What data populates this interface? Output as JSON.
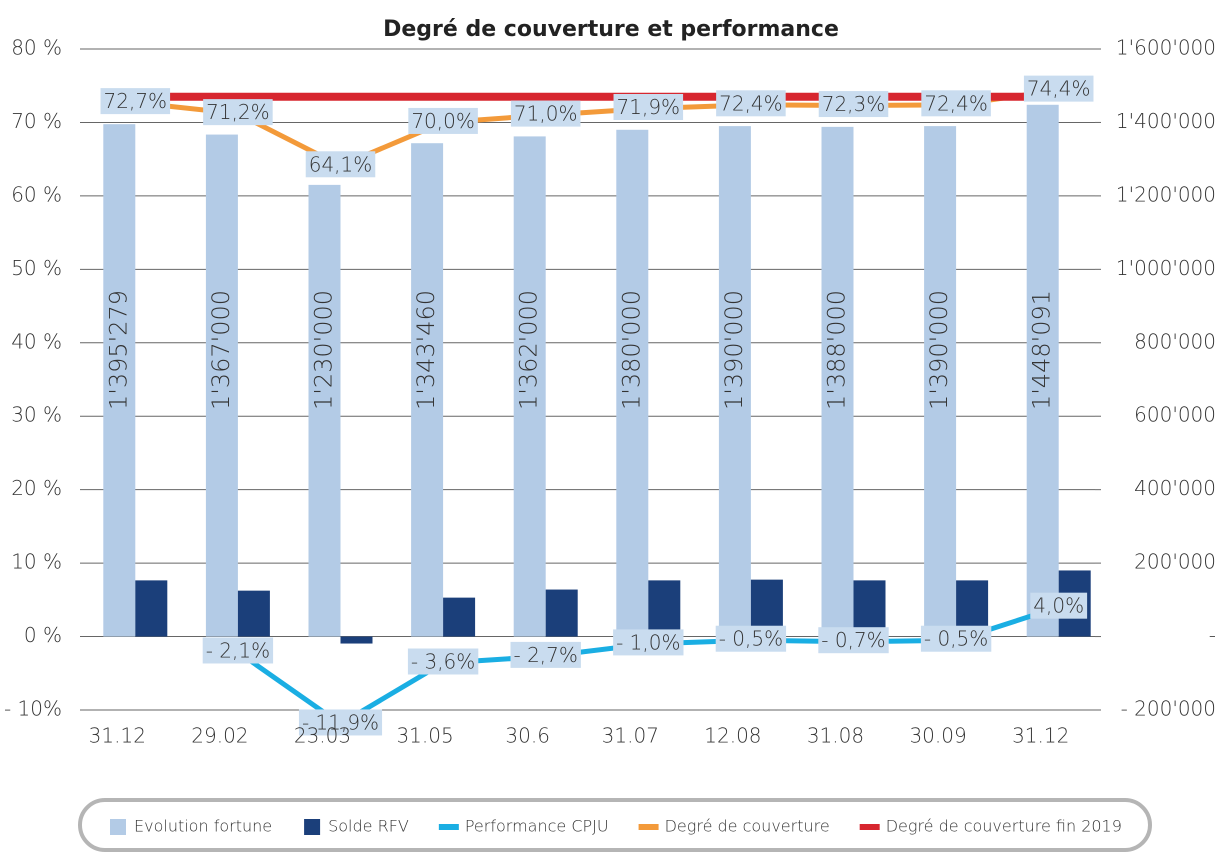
{
  "chart_data": {
    "type": "combo",
    "title": "Degré de couverture et performance",
    "categories": [
      "31.12",
      "29.02",
      "23.03",
      "31.05",
      "30.6",
      "31.07",
      "12.08",
      "31.08",
      "30.09",
      "31.12"
    ],
    "ylim": [
      -10,
      80
    ],
    "yticks": [
      {
        "value": -10,
        "label": "- 10%"
      },
      {
        "value": 0,
        "label": "0 %"
      },
      {
        "value": 10,
        "label": "10 %"
      },
      {
        "value": 20,
        "label": "20 %"
      },
      {
        "value": 30,
        "label": "30 %"
      },
      {
        "value": 40,
        "label": "40 %"
      },
      {
        "value": 50,
        "label": "50 %"
      },
      {
        "value": 60,
        "label": "60 %"
      },
      {
        "value": 70,
        "label": "70 %"
      },
      {
        "value": 80,
        "label": "80 %"
      }
    ],
    "y2lim": [
      -200000,
      1600000
    ],
    "y2ticks": [
      {
        "value": -200000,
        "label": "- 200'000"
      },
      {
        "value": 0,
        "label": "-"
      },
      {
        "value": 200000,
        "label": "200'000"
      },
      {
        "value": 400000,
        "label": "400'000"
      },
      {
        "value": 600000,
        "label": "600'000"
      },
      {
        "value": 800000,
        "label": "800'000"
      },
      {
        "value": 1000000,
        "label": "1'000'000"
      },
      {
        "value": 1200000,
        "label": "1'200'000"
      },
      {
        "value": 1400000,
        "label": "1'400'000"
      },
      {
        "value": 1600000,
        "label": "1'600'000"
      }
    ],
    "grid": true,
    "legend": "bottom",
    "series": [
      {
        "name": "Evolution fortune",
        "type": "bar",
        "axis": "y2",
        "color": "#b3cbe6",
        "values": [
          1395279,
          1367000,
          1230000,
          1343460,
          1362000,
          1380000,
          1390000,
          1388000,
          1390000,
          1448091
        ],
        "value_labels": [
          "1'395'279",
          "1'367'000",
          "1'230'000",
          "1'343'460",
          "1'362'000",
          "1'380'000",
          "1'390'000",
          "1'388'000",
          "1'390'000",
          "1'448'091"
        ]
      },
      {
        "name": "Solde RFV",
        "type": "bar",
        "axis": "y2",
        "color": "#1b3f7a",
        "values": [
          153000,
          125000,
          -19000,
          106000,
          128000,
          153000,
          155000,
          153000,
          153000,
          180000
        ]
      },
      {
        "name": "Performance CPJU",
        "type": "line",
        "color": "#1aaee3",
        "values": [
          null,
          -2.1,
          -11.9,
          -3.6,
          -2.7,
          -1.0,
          -0.5,
          -0.7,
          -0.5,
          4.0
        ],
        "value_labels": [
          null,
          "- 2,1%",
          "- 11,9%",
          "- 3,6%",
          "- 2,7%",
          "- 1,0%",
          "- 0,5%",
          "- 0,7%",
          "- 0,5%",
          "4,0%"
        ]
      },
      {
        "name": "Degré de couverture",
        "type": "line",
        "color": "#f39a3a",
        "values": [
          72.7,
          71.2,
          64.1,
          70.0,
          71.0,
          71.9,
          72.4,
          72.3,
          72.4,
          74.4
        ],
        "value_labels": [
          "72,7%",
          "71,2%",
          "64,1%",
          "70,0%",
          "71,0%",
          "71,9%",
          "72,4%",
          "72,3%",
          "72,4%",
          "74,4%"
        ]
      },
      {
        "name": "Degré de couverture fin 2019",
        "type": "line",
        "color": "#d7262f",
        "width": 8,
        "values": [
          73.5,
          73.5,
          73.5,
          73.5,
          73.5,
          73.5,
          73.5,
          73.5,
          73.5,
          73.5
        ]
      }
    ]
  }
}
